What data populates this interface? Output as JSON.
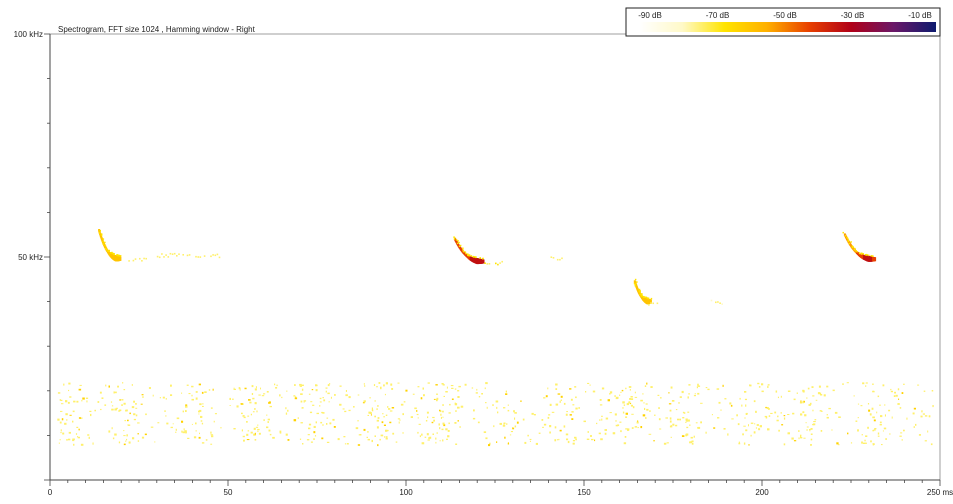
{
  "chart_data": {
    "type": "heatmap",
    "title": "Spectrogram, FFT size 1024 , Hamming window - Right",
    "x_ticks": [
      {
        "value": 0,
        "label": "0"
      },
      {
        "value": 50,
        "label": "50"
      },
      {
        "value": 100,
        "label": "100"
      },
      {
        "value": 150,
        "label": "150"
      },
      {
        "value": 200,
        "label": "200"
      },
      {
        "value": 250,
        "label": "250 ms"
      }
    ],
    "y_ticks": [
      {
        "value": 100,
        "label": "100 kHz"
      },
      {
        "value": 50,
        "label": "50 kHz"
      }
    ],
    "x_range_ms": [
      0,
      250
    ],
    "y_range_khz": [
      0,
      100
    ],
    "legend": {
      "labels": [
        "-90 dB",
        "-70 dB",
        "-50 dB",
        "-30 dB",
        "-10 dB"
      ],
      "colors": [
        "#ffffff",
        "#fff9c8",
        "#ffe400",
        "#ffb000",
        "#e84000",
        "#b00018",
        "#6a1868",
        "#0d1a6e"
      ]
    },
    "calls": [
      {
        "start_ms": 13.5,
        "end_ms": 19.5,
        "start_khz": 56,
        "end_khz": 49.6,
        "max_db": -45,
        "body_db": -50
      },
      {
        "start_ms": 113.5,
        "end_ms": 121.5,
        "start_khz": 54,
        "end_khz": 49.0,
        "max_db": -22,
        "body_db": -35
      },
      {
        "start_ms": 164.0,
        "end_ms": 168.5,
        "start_khz": 44.5,
        "end_khz": 40.0,
        "max_db": -45,
        "body_db": -50
      },
      {
        "start_ms": 223.0,
        "end_ms": 231.5,
        "start_khz": 55,
        "end_khz": 49.5,
        "max_db": -25,
        "body_db": -38
      }
    ],
    "faint_segments": [
      {
        "start_ms": 22,
        "end_ms": 27,
        "khz": 49.4,
        "db": -65
      },
      {
        "start_ms": 30,
        "end_ms": 48,
        "khz": 50.5,
        "db": -70
      },
      {
        "start_ms": 122,
        "end_ms": 127,
        "khz": 48.8,
        "db": -62
      },
      {
        "start_ms": 140,
        "end_ms": 145,
        "khz": 50.0,
        "db": -70
      },
      {
        "start_ms": 168,
        "end_ms": 172,
        "khz": 39.8,
        "db": -70
      },
      {
        "start_ms": 185,
        "end_ms": 189,
        "khz": 40.0,
        "db": -75
      }
    ],
    "noise_band_khz": [
      8,
      22
    ],
    "noise_level_db": -68,
    "grid": false
  }
}
